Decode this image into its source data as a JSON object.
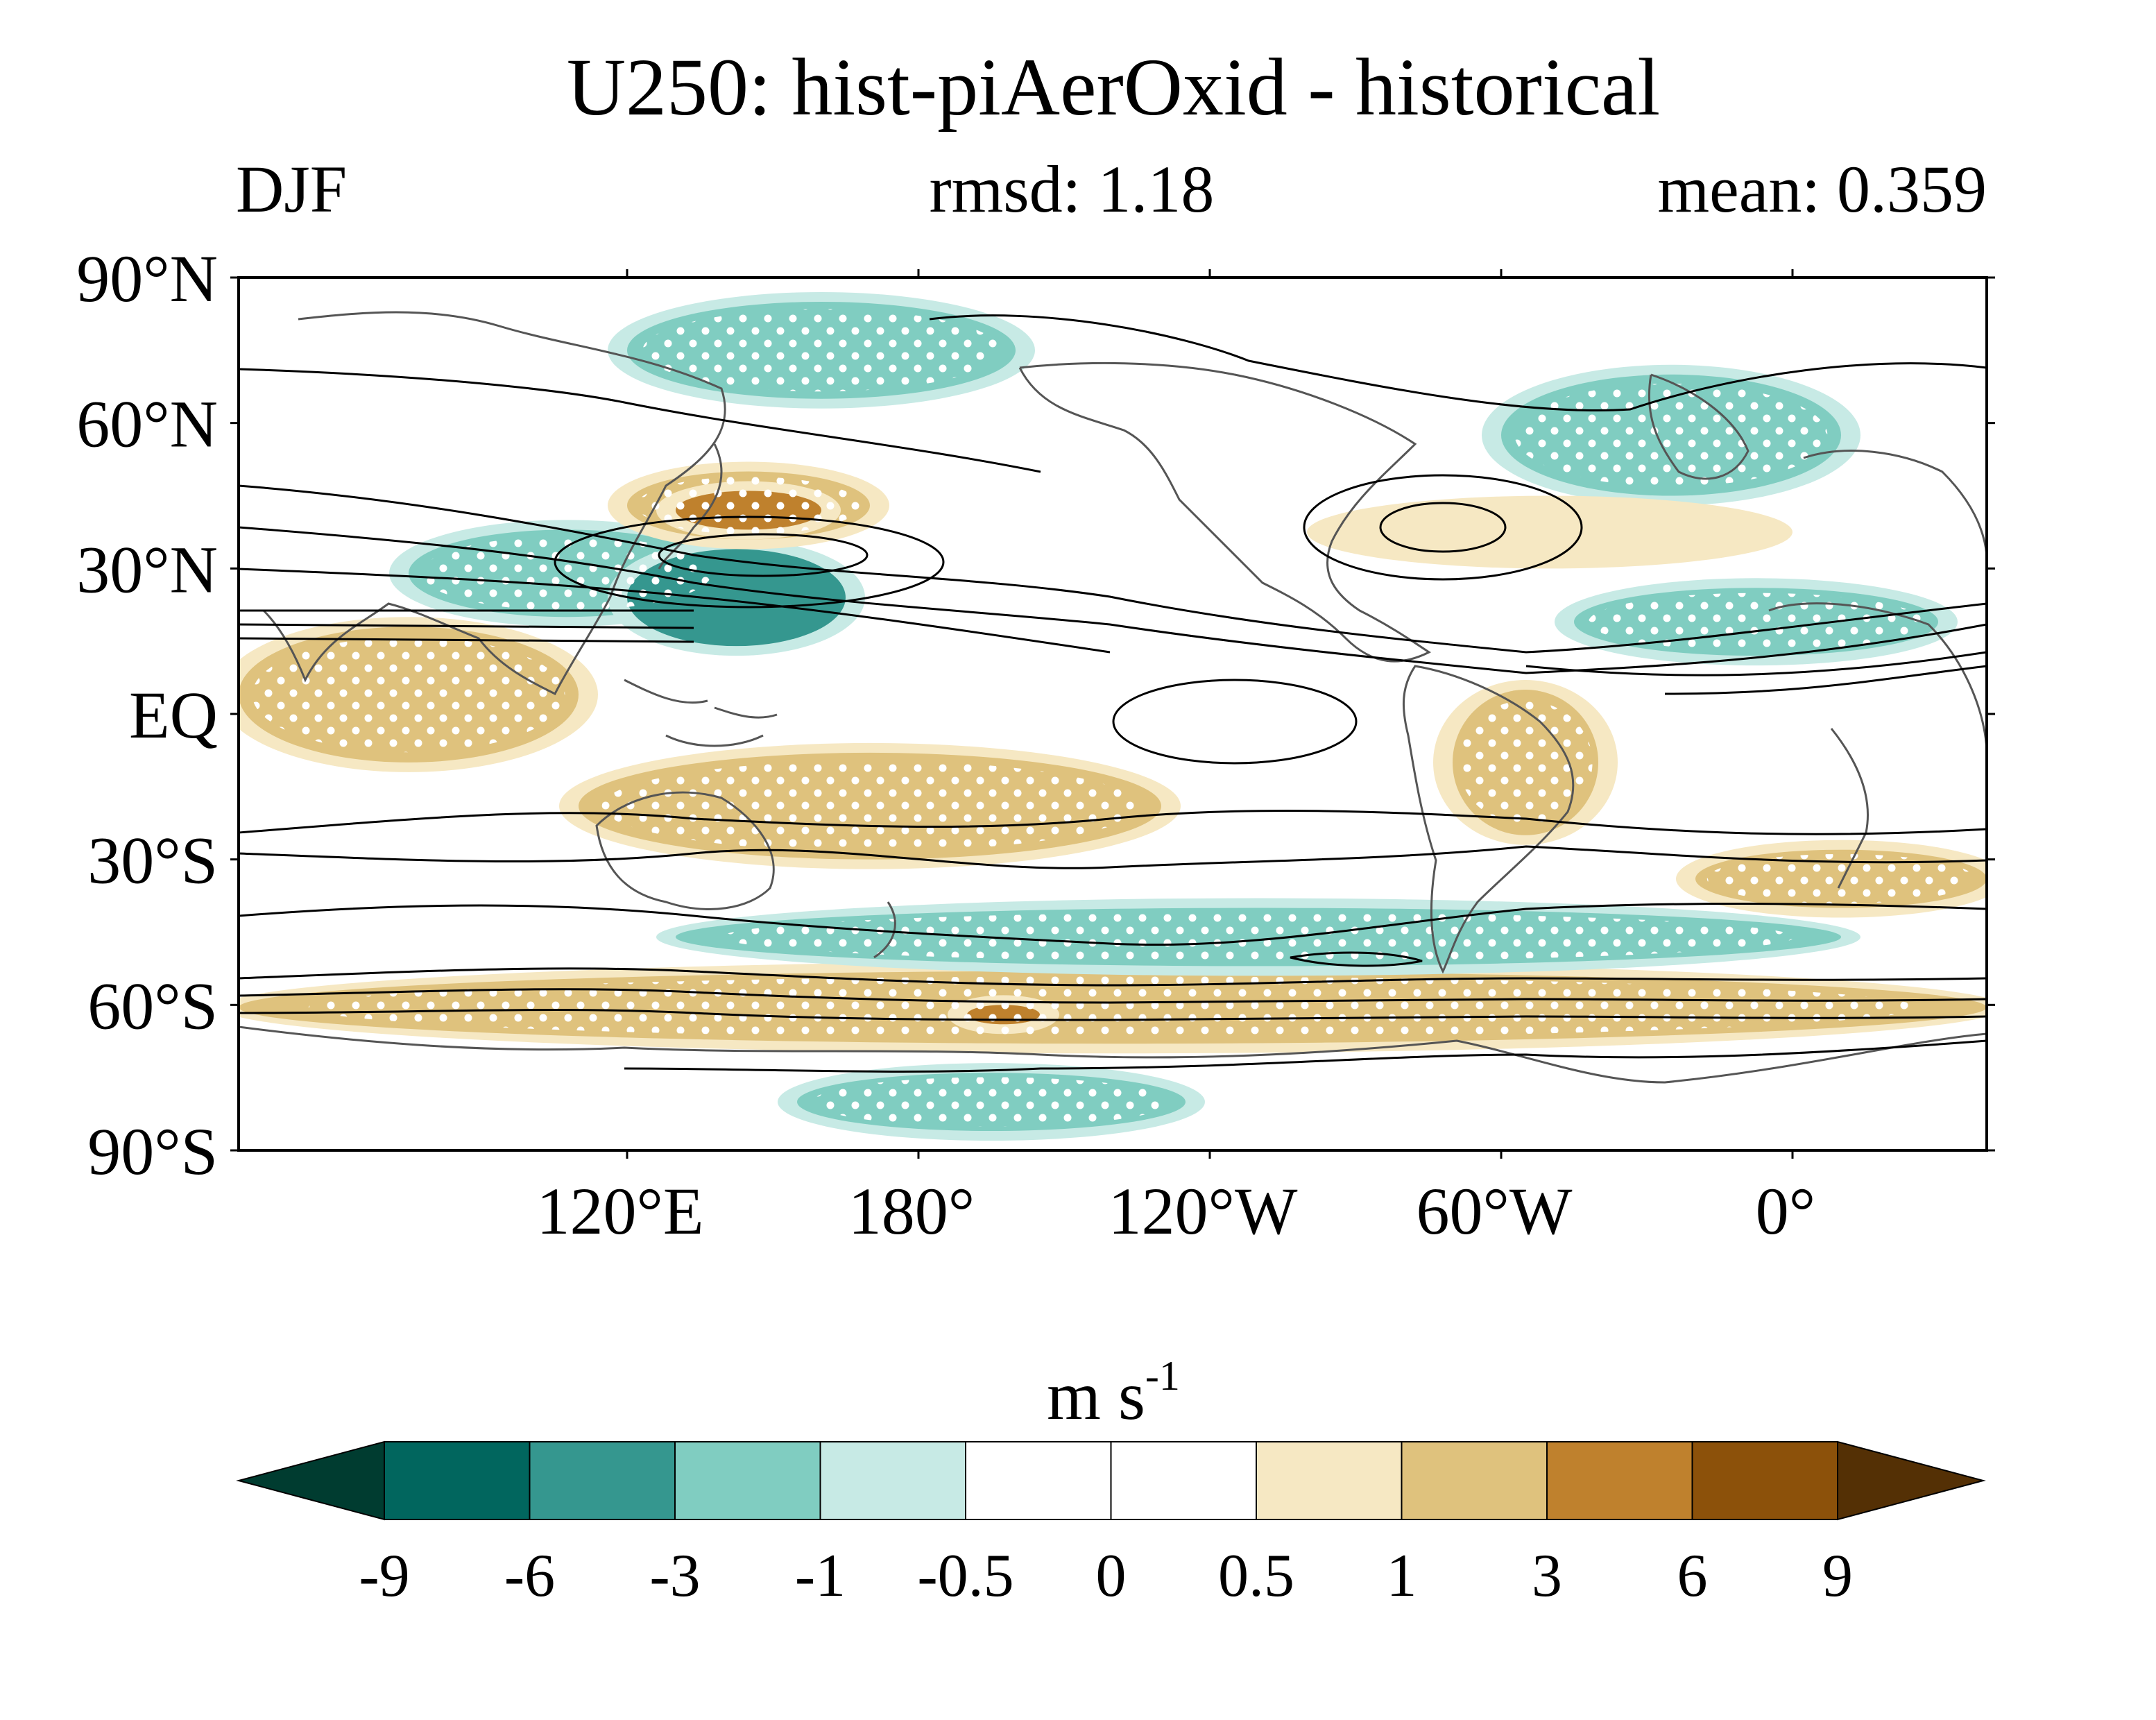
{
  "chart_data": {
    "type": "heatmap",
    "title": "U250: hist-piAerOxid - historical",
    "season": "DJF",
    "rmsd_label": "rmsd: 1.18",
    "mean_label": "mean: 0.359",
    "rmsd": 1.18,
    "mean": 0.359,
    "units_label": "m s",
    "units_exponent": "-1",
    "lat_ticks": [
      "90°N",
      "60°N",
      "30°N",
      "EQ",
      "30°S",
      "60°S",
      "90°S"
    ],
    "lat_values": [
      90,
      60,
      30,
      0,
      -30,
      -60,
      -90
    ],
    "lon_ticks": [
      "120°E",
      "180°",
      "120°W",
      "60°W",
      "0°"
    ],
    "lon_values": [
      120,
      180,
      240,
      300,
      360
    ],
    "xlim": [
      40,
      400
    ],
    "ylim": [
      -90,
      90
    ],
    "colorbar": {
      "levels": [
        "-9",
        "-6",
        "-3",
        "-1",
        "-0.5",
        "0",
        "0.5",
        "1",
        "3",
        "6",
        "9"
      ],
      "colors": [
        "#003c30",
        "#01665e",
        "#35978f",
        "#80cdc1",
        "#c7eae5",
        "#ffffff",
        "#ffffff",
        "#f6e8c3",
        "#dfc27d",
        "#bf812d",
        "#8c510a",
        "#543005"
      ],
      "extend": "both"
    },
    "anomaly_regions": [
      {
        "lon": [
          75,
          140
        ],
        "lat": [
          20,
          38
        ],
        "level": -1
      },
      {
        "lon": [
          120,
          165
        ],
        "lat": [
          14,
          34
        ],
        "level": -3
      },
      {
        "lon": [
          120,
          170
        ],
        "lat": [
          36,
          50
        ],
        "level": 1
      },
      {
        "lon": [
          130,
          160
        ],
        "lat": [
          38,
          46
        ],
        "level": 3
      },
      {
        "lon": [
          120,
          200
        ],
        "lat": [
          65,
          85
        ],
        "level": -1
      },
      {
        "lon": [
          40,
          110
        ],
        "lat": [
          -10,
          18
        ],
        "level": 1
      },
      {
        "lon": [
          110,
          230
        ],
        "lat": [
          -30,
          -8
        ],
        "level": 1
      },
      {
        "lon": [
          290,
          320
        ],
        "lat": [
          -25,
          5
        ],
        "level": 1
      },
      {
        "lon": [
          40,
          400
        ],
        "lat": [
          -68,
          -53
        ],
        "level": 1
      },
      {
        "lon": [
          190,
          205
        ],
        "lat": [
          -64,
          -60
        ],
        "level": 3
      },
      {
        "lon": [
          130,
          370
        ],
        "lat": [
          -52,
          -40
        ],
        "level": -1
      },
      {
        "lon": [
          300,
          370
        ],
        "lat": [
          45,
          70
        ],
        "level": -1
      },
      {
        "lon": [
          155,
          235
        ],
        "lat": [
          -86,
          -74
        ],
        "level": -1
      },
      {
        "lon": [
          260,
          360
        ],
        "lat": [
          30,
          45
        ],
        "level": 0.5
      },
      {
        "lon": [
          315,
          390
        ],
        "lat": [
          12,
          26
        ],
        "level": -1
      },
      {
        "lon": [
          340,
          400
        ],
        "lat": [
          -40,
          -28
        ],
        "level": 1
      }
    ],
    "stippling": "white dots mark regions of statistical significance",
    "contours": "black contours show climatological U250"
  }
}
